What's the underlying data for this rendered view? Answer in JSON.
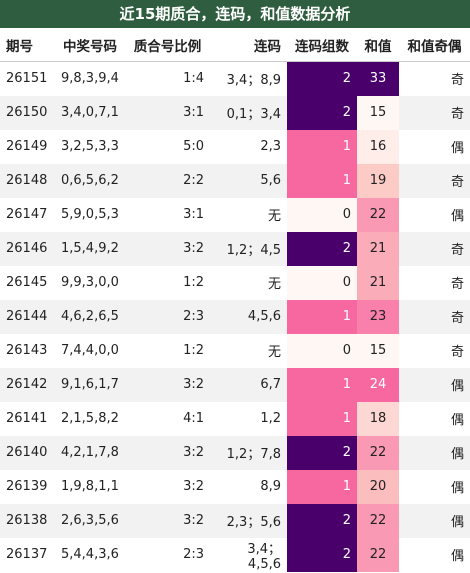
{
  "title": "近15期质合，连码，和值数据分析",
  "table": {
    "header": [
      "期号",
      "中奖号码",
      "质合号比例",
      "连码",
      "连码组数",
      "和值",
      "和值奇偶"
    ],
    "rows": [
      [
        26151,
        "9,8,3,9,4",
        "1:4",
        "3,4；8,9",
        2,
        33,
        "奇"
      ],
      [
        26150,
        "3,4,0,7,1",
        "3:1",
        "0,1；3,4",
        2,
        15,
        "奇"
      ],
      [
        26149,
        "3,2,5,3,3",
        "5:0",
        "2,3",
        1,
        16,
        "偶"
      ],
      [
        26148,
        "0,6,5,6,2",
        "2:2",
        "5,6",
        1,
        19,
        "奇"
      ],
      [
        26147,
        "5,9,0,5,3",
        "3:1",
        "无",
        0,
        22,
        "偶"
      ],
      [
        26146,
        "1,5,4,9,2",
        "3:2",
        "1,2；4,5",
        2,
        21,
        "奇"
      ],
      [
        26145,
        "9,9,3,0,0",
        "1:2",
        "无",
        0,
        21,
        "奇"
      ],
      [
        26144,
        "4,6,2,6,5",
        "2:3",
        "4,5,6",
        1,
        23,
        "奇"
      ],
      [
        26143,
        "7,4,4,0,0",
        "1:2",
        "无",
        0,
        15,
        "奇"
      ],
      [
        26142,
        "9,1,6,1,7",
        "3:2",
        "6,7",
        1,
        24,
        "偶"
      ],
      [
        26141,
        "2,1,5,8,2",
        "4:1",
        "1,2",
        1,
        18,
        "偶"
      ],
      [
        26140,
        "4,2,1,7,8",
        "3:2",
        "1,2；7,8",
        2,
        22,
        "偶"
      ],
      [
        26139,
        "1,9,8,1,1",
        "3:2",
        "8,9",
        1,
        20,
        "偶"
      ],
      [
        26138,
        "2,6,3,5,6",
        "3:2",
        "2,3；5,6",
        2,
        22,
        "偶"
      ],
      [
        26137,
        "5,4,4,3,6",
        "2:3",
        "3,4；4,5,6",
        2,
        22,
        "偶"
      ]
    ]
  }
}
